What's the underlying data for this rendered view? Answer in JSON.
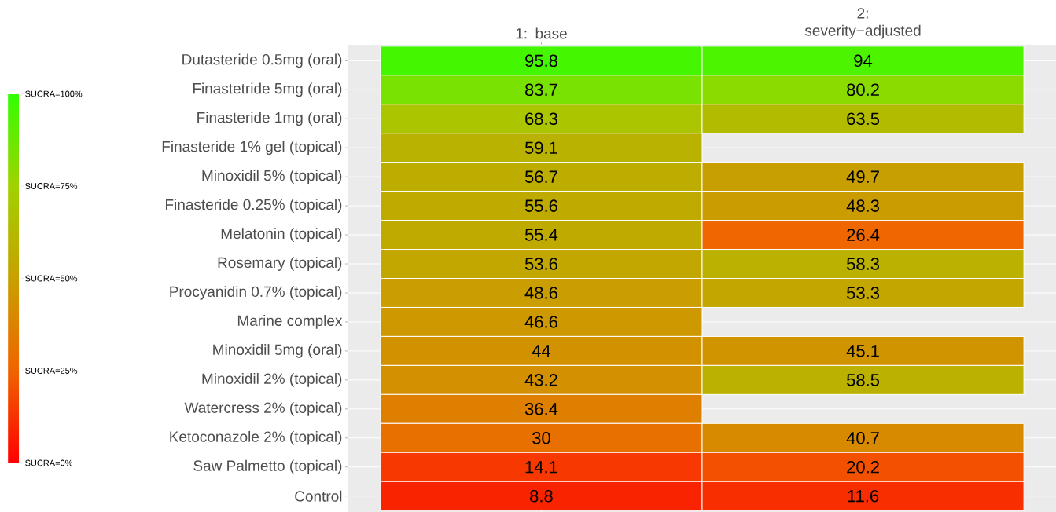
{
  "chart_data": {
    "type": "heatmap",
    "categories": [
      "1: base",
      "2: severity−adjusted"
    ],
    "y_categories": [
      "Dutasteride 0.5mg (oral)",
      "Finastetride 5mg (oral)",
      "Finasteride 1mg (oral)",
      "Finasteride 1% gel (topical)",
      "Minoxidil 5% (topical)",
      "Finasteride 0.25% (topical)",
      "Melatonin (topical)",
      "Rosemary (topical)",
      "Procyanidin 0.7% (topical)",
      "Marine complex",
      "Minoxidil 5mg (oral)",
      "Minoxidil 2% (topical)",
      "Watercress 2% (topical)",
      "Ketoconazole 2% (topical)",
      "Saw Palmetto (topical)",
      "Control"
    ],
    "cells": [
      [
        95.8,
        94
      ],
      [
        83.7,
        80.2
      ],
      [
        68.3,
        63.5
      ],
      [
        59.1,
        null
      ],
      [
        56.7,
        49.7
      ],
      [
        55.6,
        48.3
      ],
      [
        55.4,
        26.4
      ],
      [
        53.6,
        58.3
      ],
      [
        48.6,
        53.3
      ],
      [
        46.6,
        null
      ],
      [
        44,
        45.1
      ],
      [
        43.2,
        58.5
      ],
      [
        36.4,
        null
      ],
      [
        30,
        40.7
      ],
      [
        14.1,
        20.2
      ],
      [
        8.8,
        11.6
      ]
    ],
    "clim": [
      0,
      100
    ],
    "cticks": [
      {
        "value": 0,
        "label": "SUCRA=0%"
      },
      {
        "value": 25,
        "label": "SUCRA=25%"
      },
      {
        "value": 50,
        "label": "SUCRA=50%"
      },
      {
        "value": 75,
        "label": "SUCRA=75%"
      },
      {
        "value": 100,
        "label": "SUCRA=100%"
      }
    ],
    "data_labels": true,
    "grid": true
  }
}
